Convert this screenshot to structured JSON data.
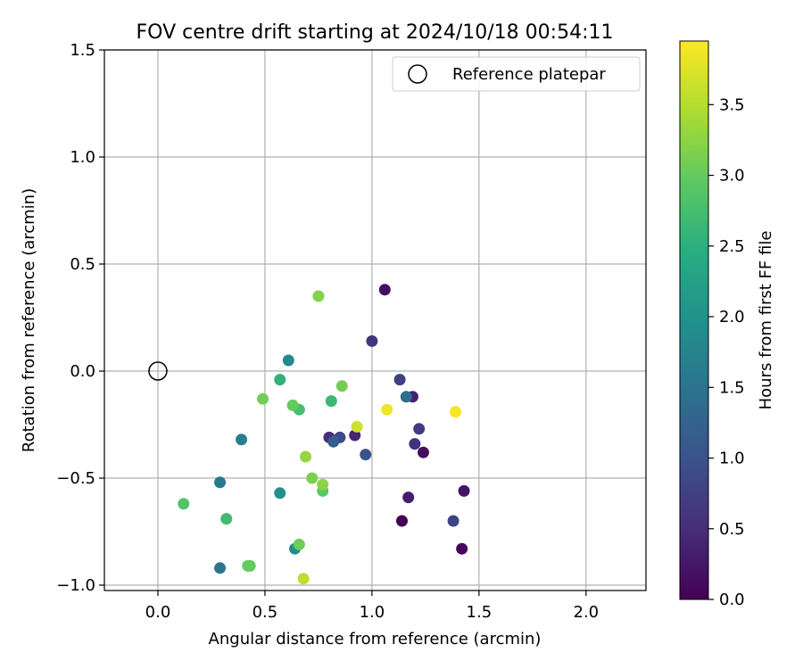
{
  "chart_data": {
    "type": "scatter",
    "title": "FOV centre drift starting at 2024/10/18 00:54:11",
    "xlabel": "Angular distance from reference (arcmin)",
    "ylabel": "Rotation from reference (arcmin)",
    "xlim": [
      -0.25,
      2.28
    ],
    "ylim": [
      -1.025,
      1.5
    ],
    "xticks": [
      0.0,
      0.5,
      1.0,
      1.5,
      2.0
    ],
    "xtick_labels": [
      "0.0",
      "0.5",
      "1.0",
      "1.5",
      "2.0"
    ],
    "yticks": [
      -1.0,
      -0.5,
      0.0,
      0.5,
      1.0,
      1.5
    ],
    "ytick_labels": [
      "−1.0",
      "−0.5",
      "0.0",
      "0.5",
      "1.0",
      "1.5"
    ],
    "grid": true,
    "legend": {
      "position": "top-right",
      "entries": [
        {
          "label": "Reference platepar",
          "marker": "open-circle"
        }
      ]
    },
    "reference_point": {
      "x": 0.0,
      "y": 0.0
    },
    "colorbar": {
      "label": "Hours from first FF file",
      "colormap": "viridis",
      "range": [
        0.0,
        3.95
      ],
      "ticks": [
        0.0,
        0.5,
        1.0,
        1.5,
        2.0,
        2.5,
        3.0,
        3.5
      ],
      "tick_labels": [
        "0.0",
        "0.5",
        "1.0",
        "1.5",
        "2.0",
        "2.5",
        "3.0",
        "3.5"
      ]
    },
    "points": [
      {
        "x": 1.14,
        "y": -0.7,
        "c": 0.0
      },
      {
        "x": 1.42,
        "y": -0.83,
        "c": 0.08
      },
      {
        "x": 1.24,
        "y": -0.38,
        "c": 0.12
      },
      {
        "x": 1.06,
        "y": 0.38,
        "c": 0.15
      },
      {
        "x": 1.43,
        "y": -0.56,
        "c": 0.22
      },
      {
        "x": 1.17,
        "y": -0.59,
        "c": 0.3
      },
      {
        "x": 1.19,
        "y": -0.12,
        "c": 0.35
      },
      {
        "x": 0.92,
        "y": -0.3,
        "c": 0.42
      },
      {
        "x": 0.8,
        "y": -0.31,
        "c": 0.5
      },
      {
        "x": 1.2,
        "y": -0.34,
        "c": 0.55
      },
      {
        "x": 1.0,
        "y": 0.14,
        "c": 0.6
      },
      {
        "x": 1.22,
        "y": -0.27,
        "c": 0.68
      },
      {
        "x": 1.13,
        "y": -0.04,
        "c": 0.75
      },
      {
        "x": 1.38,
        "y": -0.7,
        "c": 0.8
      },
      {
        "x": 0.85,
        "y": -0.31,
        "c": 0.88
      },
      {
        "x": 0.97,
        "y": -0.39,
        "c": 1.0
      },
      {
        "x": 0.82,
        "y": -0.33,
        "c": 1.15
      },
      {
        "x": 1.16,
        "y": -0.12,
        "c": 1.4
      },
      {
        "x": 0.29,
        "y": -0.92,
        "c": 1.55
      },
      {
        "x": 0.29,
        "y": -0.52,
        "c": 1.6
      },
      {
        "x": 0.39,
        "y": -0.32,
        "c": 1.7
      },
      {
        "x": 0.61,
        "y": 0.05,
        "c": 1.85
      },
      {
        "x": 0.64,
        "y": -0.83,
        "c": 1.9
      },
      {
        "x": 0.57,
        "y": -0.57,
        "c": 2.0
      },
      {
        "x": 0.57,
        "y": -0.04,
        "c": 2.55
      },
      {
        "x": 0.81,
        "y": -0.14,
        "c": 2.65
      },
      {
        "x": 0.32,
        "y": -0.69,
        "c": 2.7
      },
      {
        "x": 0.66,
        "y": -0.18,
        "c": 2.75
      },
      {
        "x": 0.12,
        "y": -0.62,
        "c": 2.85
      },
      {
        "x": 0.77,
        "y": -0.56,
        "c": 2.9
      },
      {
        "x": 0.43,
        "y": -0.91,
        "c": 2.95
      },
      {
        "x": 0.42,
        "y": -0.91,
        "c": 3.0
      },
      {
        "x": 0.63,
        "y": -0.16,
        "c": 3.0
      },
      {
        "x": 0.66,
        "y": -0.81,
        "c": 3.05
      },
      {
        "x": 0.49,
        "y": -0.13,
        "c": 3.1
      },
      {
        "x": 0.86,
        "y": -0.07,
        "c": 3.1
      },
      {
        "x": 0.72,
        "y": -0.5,
        "c": 3.15
      },
      {
        "x": 0.75,
        "y": 0.35,
        "c": 3.2
      },
      {
        "x": 0.77,
        "y": -0.53,
        "c": 3.25
      },
      {
        "x": 0.69,
        "y": -0.4,
        "c": 3.3
      },
      {
        "x": 0.68,
        "y": -0.97,
        "c": 3.55
      },
      {
        "x": 0.93,
        "y": -0.26,
        "c": 3.65
      },
      {
        "x": 1.07,
        "y": -0.18,
        "c": 3.85
      },
      {
        "x": 1.39,
        "y": -0.19,
        "c": 3.9
      }
    ]
  }
}
